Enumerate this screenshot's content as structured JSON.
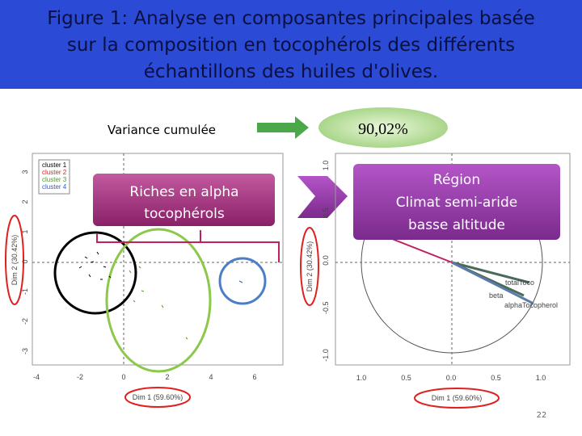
{
  "header": {
    "title": [
      "Figure 1: Analyse en composantes principales basée",
      "sur la composition en tocophérols des différents",
      "échantillons des huiles d'olives."
    ]
  },
  "variance": {
    "label": "Variance cumulée",
    "value": "90,02%"
  },
  "left_plot": {
    "callout": [
      "Riches en alpha",
      "tocophérols"
    ],
    "legend": [
      "cluster 1",
      "cluster 2",
      "cluster 3",
      "cluster 4"
    ],
    "y_axis_label": "Dim 2 (30.42%)",
    "x_axis_label": "Dim 1 (59.60%)",
    "yticks": [
      "3",
      "2",
      "1",
      "0",
      "-1",
      "-2",
      "-3"
    ],
    "xticks": [
      "-4",
      "-2",
      "0",
      "2",
      "4",
      "6"
    ]
  },
  "right_plot": {
    "callout": [
      "Région",
      "Climat semi-aride",
      "basse altitude"
    ],
    "y_axis_label": "Dim 2 (30.42%)",
    "x_axis_label": "Dim 1 (59.60%)",
    "yticks": [
      "1.0",
      "0.5",
      "0.0",
      "-0.5",
      "-1.0"
    ],
    "xticks": [
      "1.0",
      "0.5",
      "0.0",
      "0.5",
      "1.0"
    ],
    "vectors": [
      "totalToco",
      "beta",
      "alphaTocopherol"
    ]
  },
  "page_number": "22"
}
